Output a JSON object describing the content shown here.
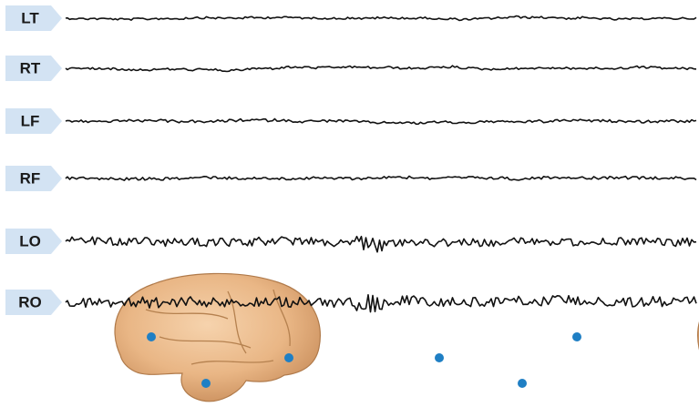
{
  "channels": [
    "LT",
    "RT",
    "LF",
    "RF",
    "LO",
    "RO"
  ]
}
